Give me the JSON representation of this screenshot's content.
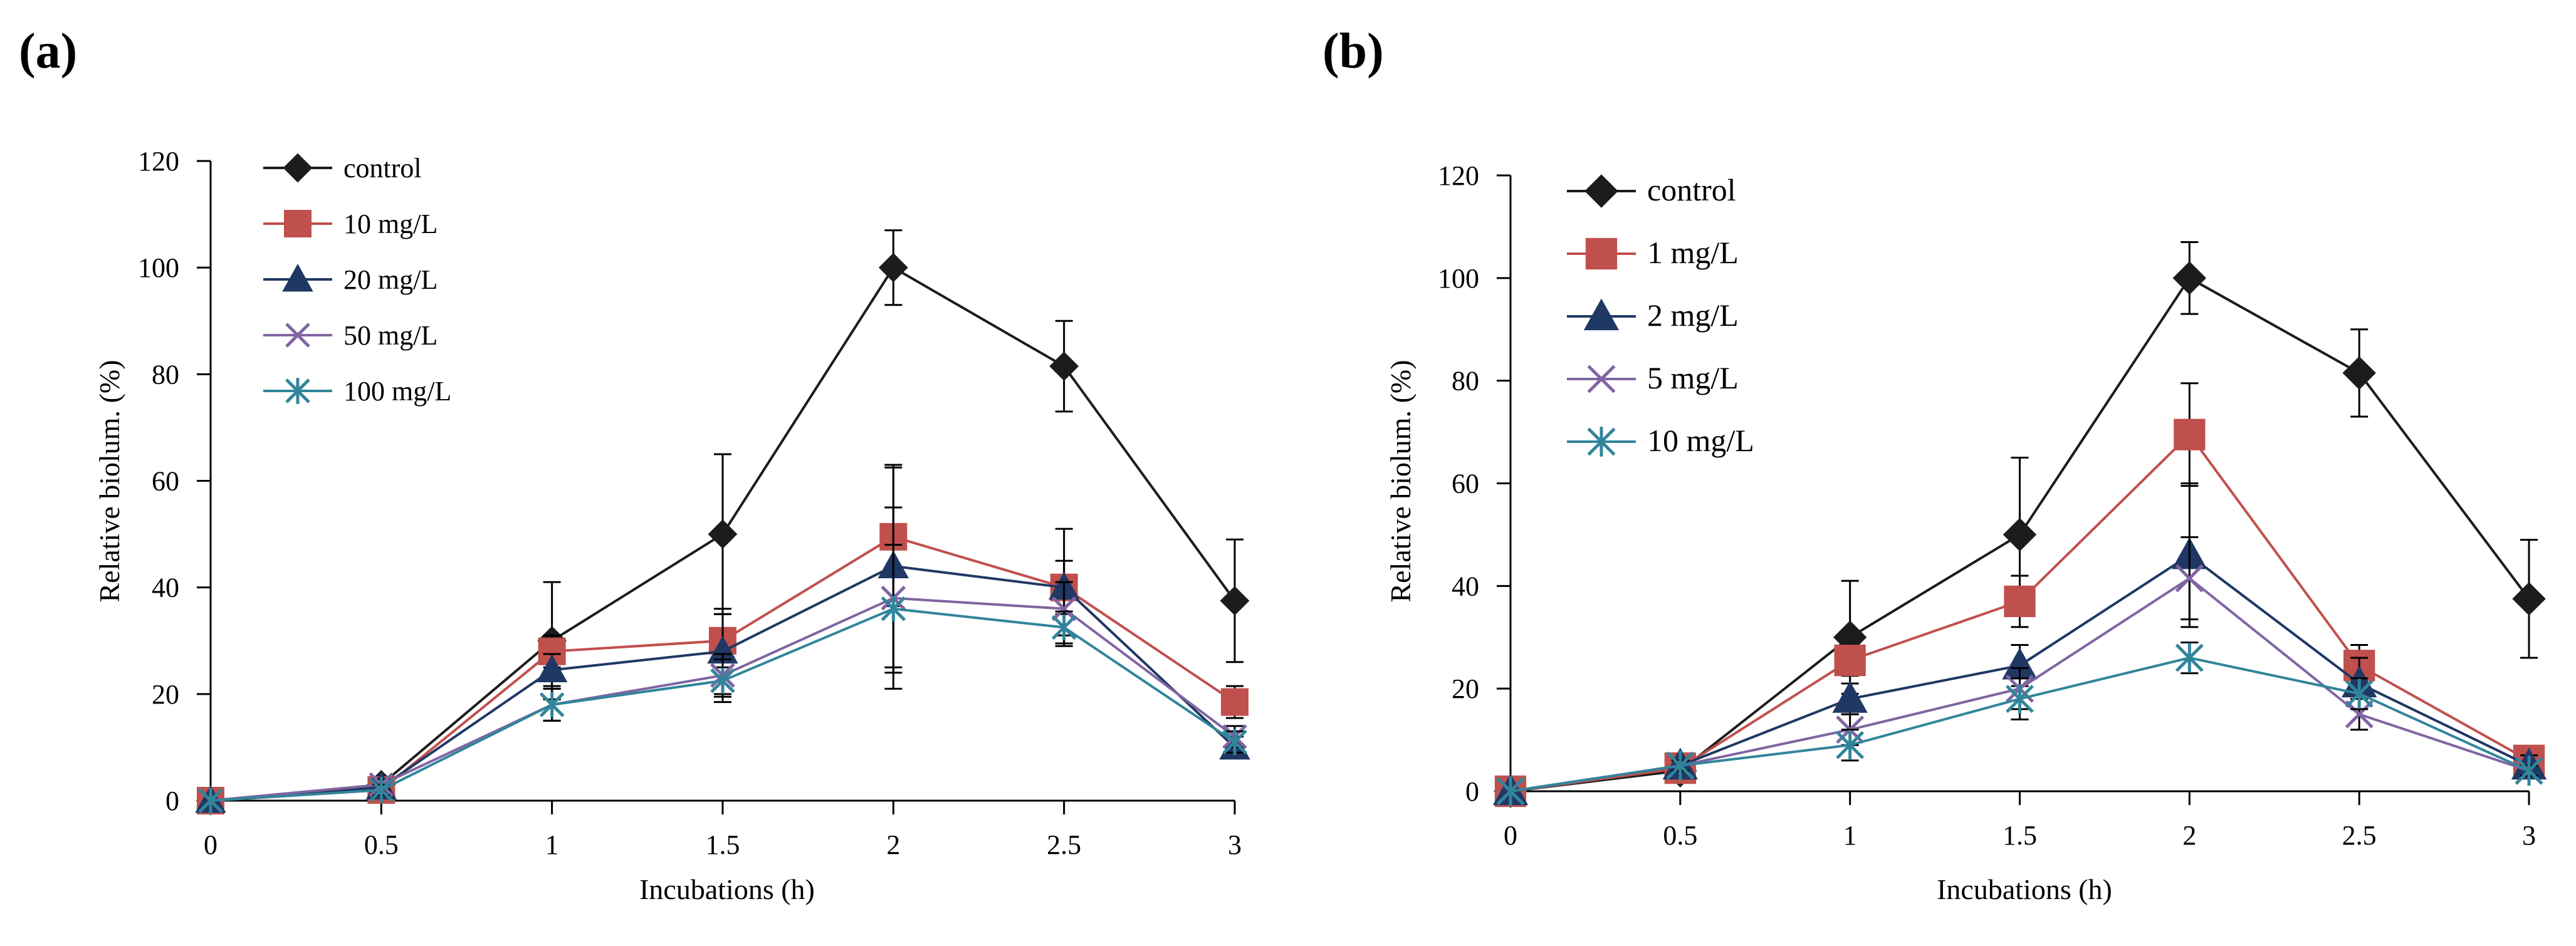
{
  "chart_data": [
    {
      "panel_label": "(a)",
      "type": "line",
      "xlabel": "Incubations (h)",
      "ylabel": "Relative biolum. (%)",
      "x": [
        0,
        0.5,
        1,
        1.5,
        2,
        2.5,
        3
      ],
      "x_tick_labels": [
        "0",
        "0.5",
        "1",
        "1.5",
        "2",
        "2.5",
        "3"
      ],
      "ylim": [
        0,
        120
      ],
      "y_ticks": [
        0,
        20,
        40,
        60,
        80,
        100,
        120
      ],
      "legend_position": "top-left",
      "series": [
        {
          "name": "control",
          "color": "#1c1c1c",
          "marker": "diamond",
          "values": [
            0,
            3,
            30,
            50,
            100,
            81.5,
            37.5
          ],
          "errors": [
            0,
            1,
            11,
            15,
            7,
            8.5,
            11.5
          ]
        },
        {
          "name": "10 mg/L",
          "color": "#c0504d",
          "marker": "square",
          "values": [
            0,
            2,
            28,
            30,
            49.5,
            40,
            18.5
          ],
          "errors": [
            0,
            1,
            3,
            5,
            13,
            11,
            3
          ]
        },
        {
          "name": "20 mg/L",
          "color": "#1f3864",
          "marker": "triangle",
          "values": [
            0,
            2.5,
            24.5,
            28,
            44,
            40,
            10
          ],
          "errors": [
            0,
            1,
            3,
            8,
            19,
            5,
            2
          ]
        },
        {
          "name": "50 mg/L",
          "color": "#8064a2",
          "marker": "x",
          "values": [
            0,
            3,
            18,
            23.5,
            38,
            36,
            12
          ],
          "errors": [
            0,
            1,
            3,
            4,
            17,
            5,
            2
          ]
        },
        {
          "name": "100 mg/L",
          "color": "#31859b",
          "marker": "star",
          "values": [
            0,
            2,
            18,
            22.5,
            36,
            32.5,
            11
          ],
          "errors": [
            0,
            1,
            3,
            4,
            12,
            3,
            2
          ]
        }
      ]
    },
    {
      "panel_label": "(b)",
      "type": "line",
      "xlabel": "Incubations (h)",
      "ylabel": "Relative biolum. (%)",
      "x": [
        0,
        0.5,
        1,
        1.5,
        2,
        2.5,
        3
      ],
      "x_tick_labels": [
        "0",
        "0.5",
        "1",
        "1.5",
        "2",
        "2.5",
        "3"
      ],
      "ylim": [
        0,
        120
      ],
      "y_ticks": [
        0,
        20,
        40,
        60,
        80,
        100,
        120
      ],
      "legend_position": "top-left",
      "series": [
        {
          "name": "control",
          "color": "#1c1c1c",
          "marker": "diamond",
          "values": [
            0,
            4,
            30,
            50,
            100,
            81.5,
            37.5
          ],
          "errors": [
            0,
            1,
            11,
            15,
            7,
            8.5,
            11.5
          ]
        },
        {
          "name": "1 mg/L",
          "color": "#c0504d",
          "marker": "square",
          "values": [
            0,
            4.5,
            25.5,
            37,
            69.5,
            24.5,
            6
          ],
          "errors": [
            0,
            1,
            3,
            5,
            10,
            4,
            2
          ]
        },
        {
          "name": "2 mg/L",
          "color": "#1f3864",
          "marker": "triangle",
          "values": [
            0,
            5,
            18,
            24.5,
            46,
            21,
            5
          ],
          "errors": [
            0,
            1,
            3,
            4,
            14,
            5,
            2
          ]
        },
        {
          "name": "5 mg/L",
          "color": "#8064a2",
          "marker": "x",
          "values": [
            0,
            5,
            12,
            20,
            41.5,
            15,
            4
          ],
          "errors": [
            0,
            1,
            3,
            4,
            8,
            3,
            1
          ]
        },
        {
          "name": "10 mg/L",
          "color": "#31859b",
          "marker": "star",
          "values": [
            0,
            5,
            9,
            18,
            26,
            19,
            4
          ],
          "errors": [
            0,
            1,
            3,
            4,
            3,
            3,
            1
          ]
        }
      ]
    }
  ]
}
